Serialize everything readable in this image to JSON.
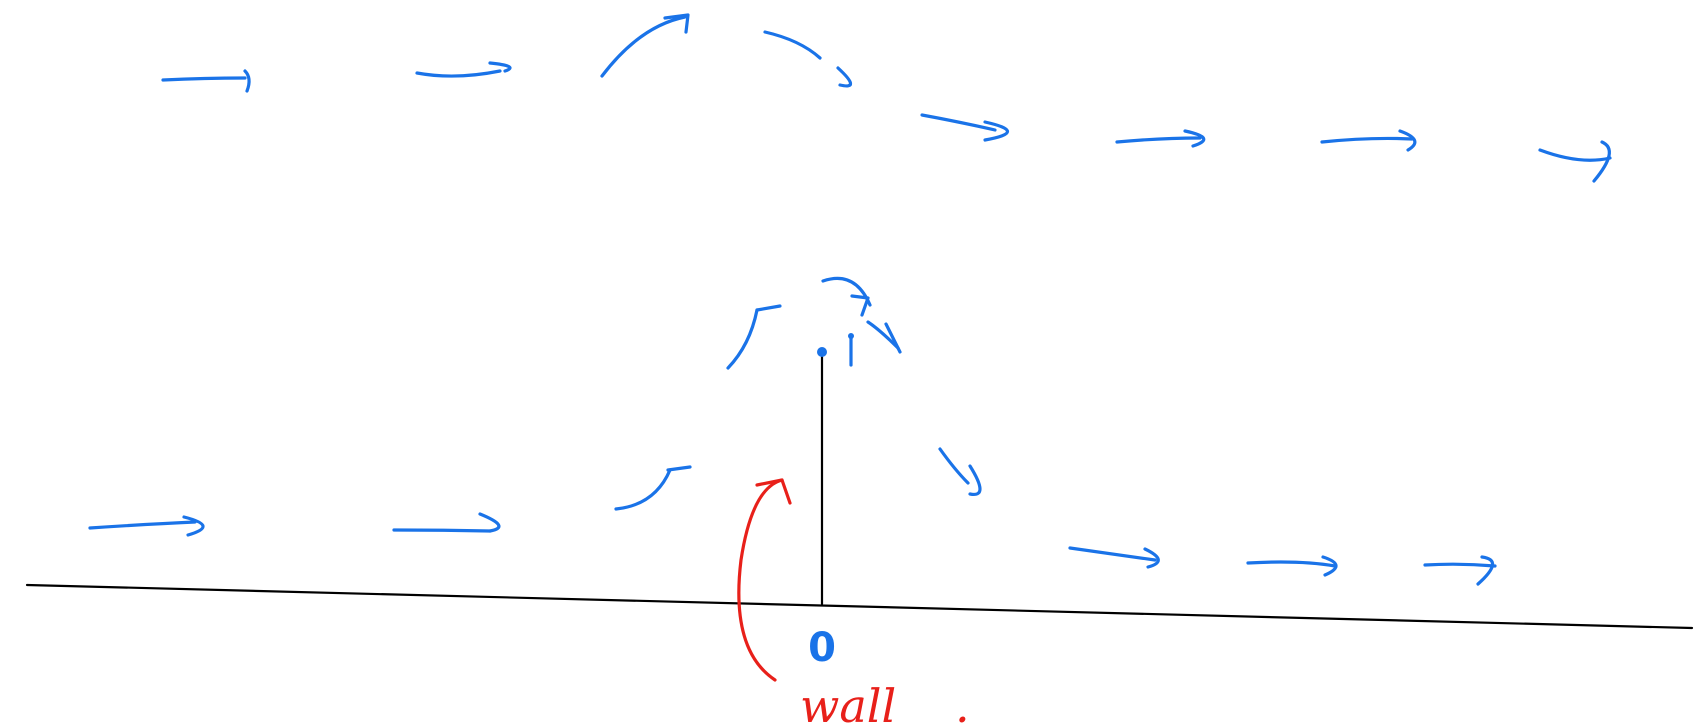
{
  "labels": {
    "origin": "0",
    "wall": "wall",
    "wall_period": "."
  },
  "colors": {
    "flow_arrows": "#1a73e8",
    "black_ink": "#000000",
    "red_ink": "#e8201a"
  }
}
